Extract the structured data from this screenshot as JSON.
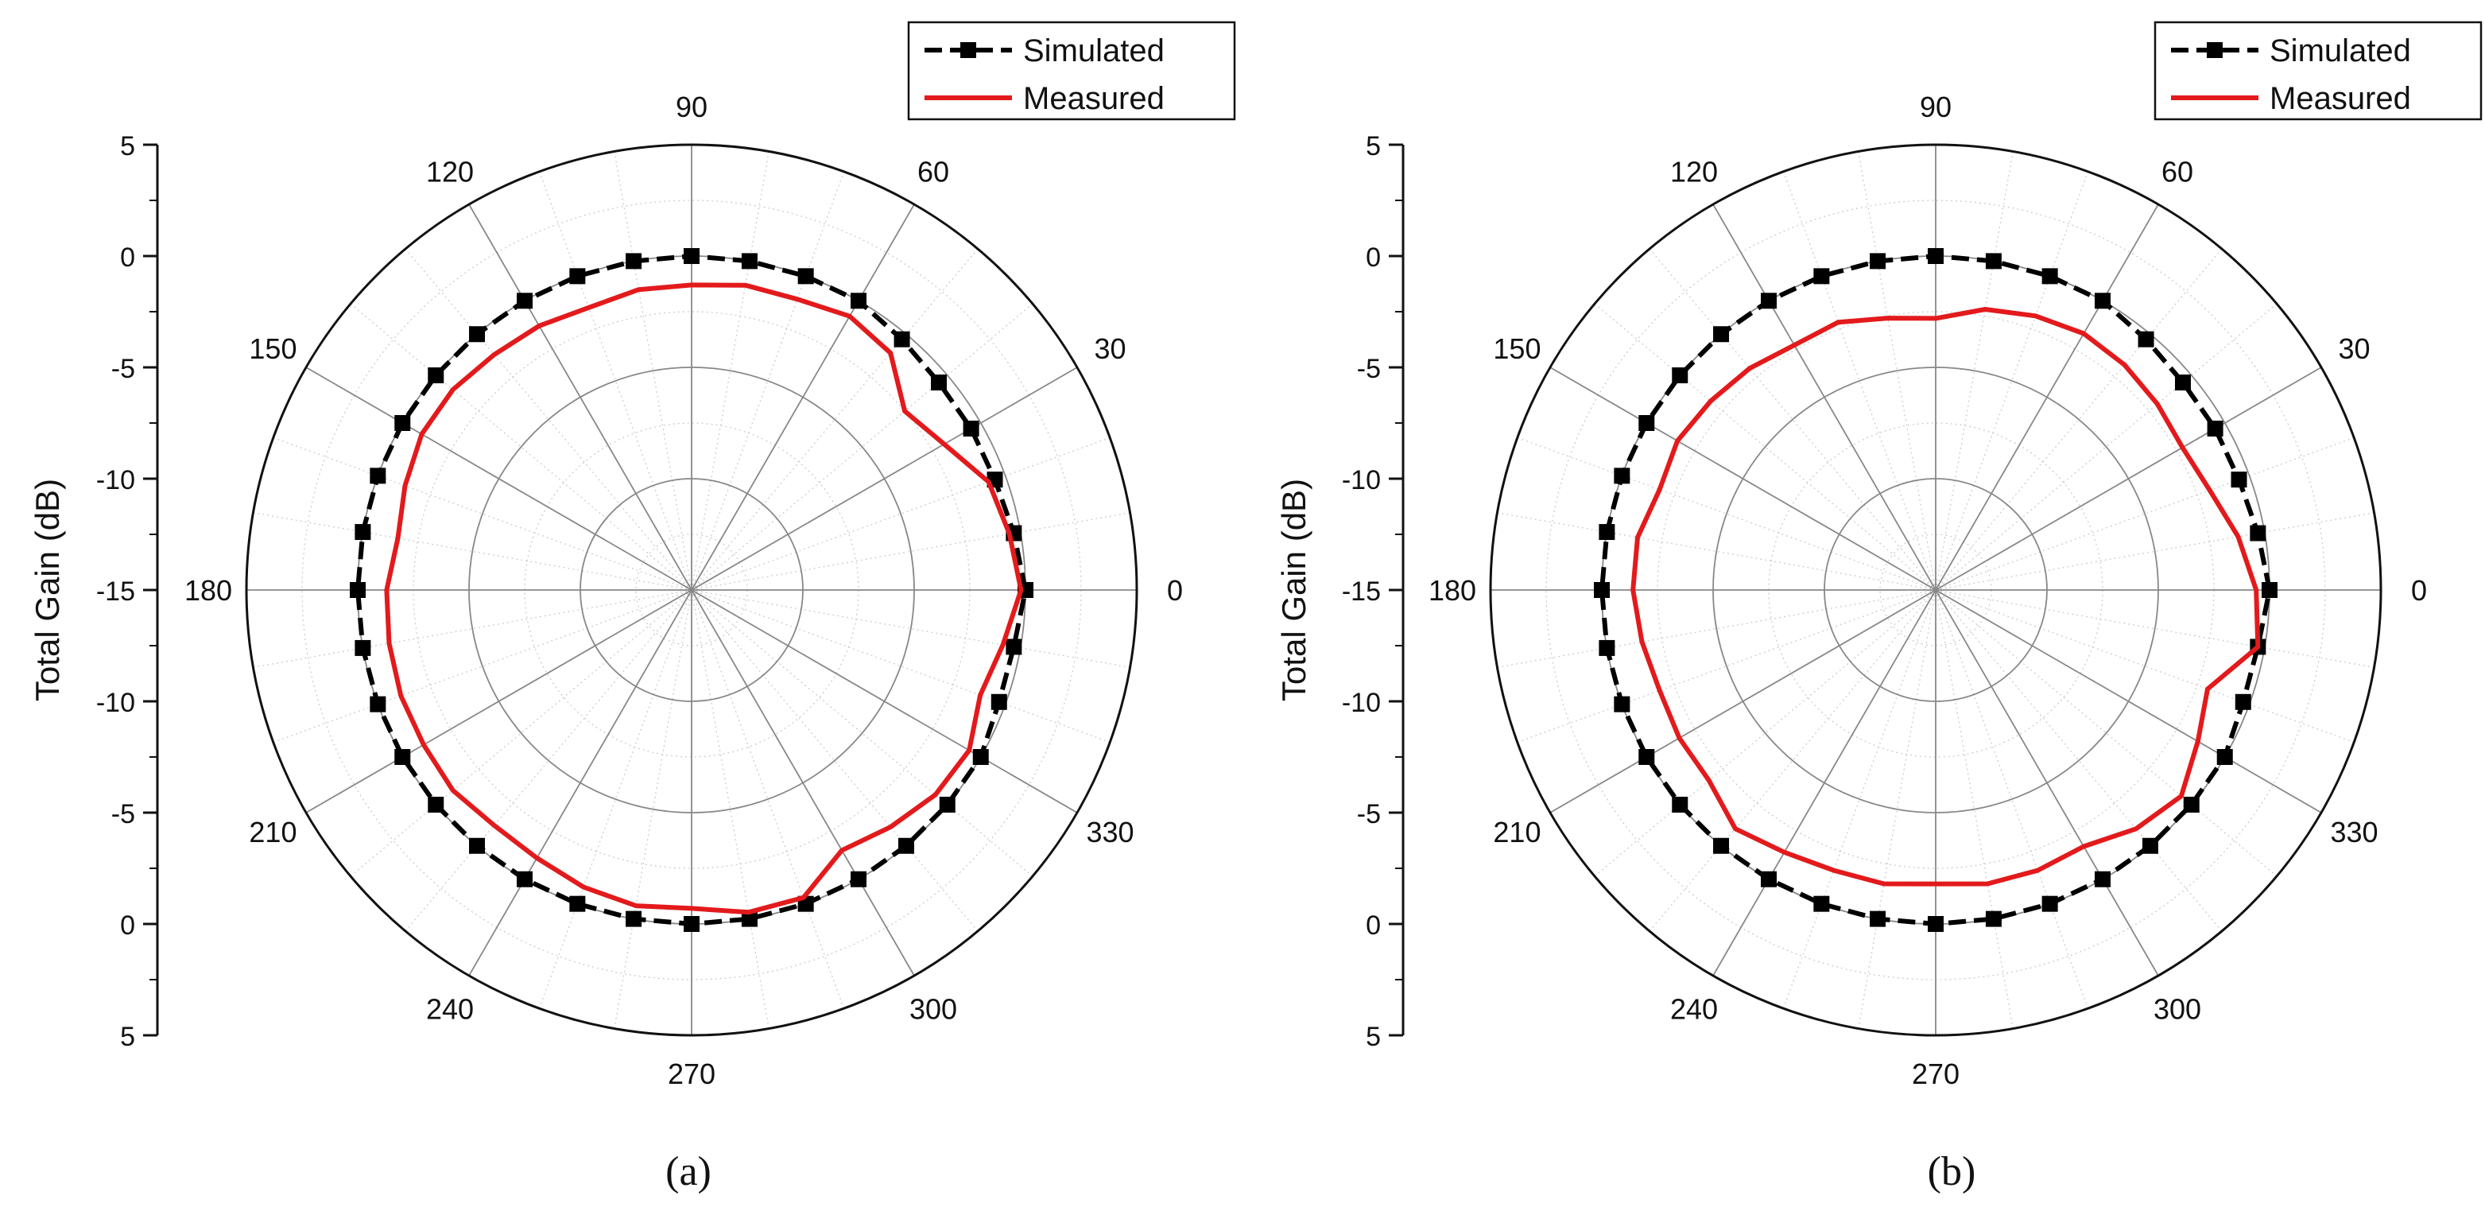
{
  "chart_data": [
    {
      "type": "polar-line",
      "panel_label": "(a)",
      "ylabel": "Total Gain (dB)",
      "r_tick_labels": [
        "5",
        "0",
        "-5",
        "-10",
        "-15",
        "-10",
        "-5",
        "0",
        "5"
      ],
      "r_range": [
        -15,
        5
      ],
      "angle_ticks": [
        "0",
        "30",
        "60",
        "90",
        "120",
        "150",
        "180",
        "210",
        "240",
        "270",
        "300",
        "330"
      ],
      "legend_position": "top-right",
      "series": [
        {
          "name": "Simulated",
          "color": "#000000",
          "style": "dashed-with-square-markers",
          "angles": [
            0,
            10,
            20,
            30,
            40,
            50,
            60,
            70,
            80,
            90,
            100,
            110,
            120,
            130,
            140,
            150,
            160,
            170,
            180,
            190,
            200,
            210,
            220,
            230,
            240,
            250,
            260,
            270,
            280,
            290,
            300,
            310,
            320,
            330,
            340,
            350
          ],
          "values": [
            0,
            -0.3,
            -0.5,
            -0.5,
            -0.5,
            -0.3,
            0,
            0,
            0,
            0,
            0,
            0,
            0,
            0,
            0,
            0,
            0,
            0,
            0,
            0,
            0,
            0,
            0,
            0,
            0,
            0,
            0,
            0,
            0,
            0,
            0,
            0,
            0,
            0,
            -0.3,
            -0.3
          ]
        },
        {
          "name": "Measured",
          "color": "#e31a1c",
          "style": "solid",
          "angles": [
            0,
            10,
            20,
            30,
            40,
            50,
            60,
            70,
            80,
            90,
            100,
            110,
            120,
            130,
            140,
            150,
            160,
            170,
            180,
            190,
            200,
            210,
            220,
            230,
            240,
            250,
            260,
            270,
            280,
            290,
            300,
            310,
            320,
            330,
            340,
            350
          ],
          "values": [
            -0.2,
            -0.5,
            -0.8,
            -1.9,
            -2.5,
            -1.1,
            -0.8,
            -1.1,
            -1.1,
            -1.3,
            -1.3,
            -1.5,
            -1.3,
            -1.2,
            -1.0,
            -1.0,
            -1.3,
            -1.6,
            -1.3,
            -1.2,
            -1.1,
            -1.1,
            -1.0,
            -1.2,
            -1.1,
            -0.8,
            -0.6,
            -0.7,
            -0.3,
            -0.3,
            -1.5,
            -1.1,
            -0.7,
            -0.6,
            -1.2,
            -0.8
          ]
        }
      ]
    },
    {
      "type": "polar-line",
      "panel_label": "(b)",
      "ylabel": "Total Gain (dB)",
      "r_tick_labels": [
        "5",
        "0",
        "-5",
        "-10",
        "-15",
        "-10",
        "-5",
        "0",
        "5"
      ],
      "r_range": [
        -15,
        5
      ],
      "angle_ticks": [
        "0",
        "30",
        "60",
        "90",
        "120",
        "150",
        "180",
        "210",
        "240",
        "270",
        "300",
        "330"
      ],
      "legend_position": "top-right",
      "series": [
        {
          "name": "Simulated",
          "color": "#000000",
          "style": "dashed-with-square-markers",
          "angles": [
            0,
            10,
            20,
            30,
            40,
            50,
            60,
            70,
            80,
            90,
            100,
            110,
            120,
            130,
            140,
            150,
            160,
            170,
            180,
            190,
            200,
            210,
            220,
            230,
            240,
            250,
            260,
            270,
            280,
            290,
            300,
            310,
            320,
            330,
            340,
            350
          ],
          "values": [
            0,
            -0.3,
            -0.5,
            -0.5,
            -0.5,
            -0.3,
            0,
            0,
            0,
            0,
            0,
            0,
            0,
            0,
            0,
            0,
            0,
            0,
            0,
            0,
            0,
            0,
            0,
            0,
            0,
            0,
            0,
            0,
            0,
            0,
            0,
            0,
            0,
            0,
            -0.3,
            -0.3
          ]
        },
        {
          "name": "Measured",
          "color": "#e31a1c",
          "style": "solid",
          "angles": [
            0,
            10,
            20,
            30,
            40,
            50,
            60,
            70,
            80,
            90,
            100,
            110,
            120,
            130,
            140,
            150,
            160,
            170,
            180,
            190,
            200,
            210,
            220,
            230,
            240,
            250,
            260,
            270,
            280,
            290,
            300,
            310,
            320,
            330,
            340,
            350
          ],
          "values": [
            -0.6,
            -1.2,
            -1.9,
            -2.2,
            -2.0,
            -1.8,
            -1.7,
            -1.9,
            -2.2,
            -2.8,
            -2.6,
            -2.2,
            -2.3,
            -2.0,
            -1.8,
            -1.6,
            -1.8,
            -1.4,
            -1.4,
            -1.6,
            -1.8,
            -1.7,
            -1.7,
            -1.0,
            -1.4,
            -1.6,
            -1.6,
            -1.8,
            -1.6,
            -1.6,
            -1.7,
            -1.0,
            -0.6,
            -1.4,
            -2.0,
            -0.3
          ]
        }
      ]
    }
  ]
}
